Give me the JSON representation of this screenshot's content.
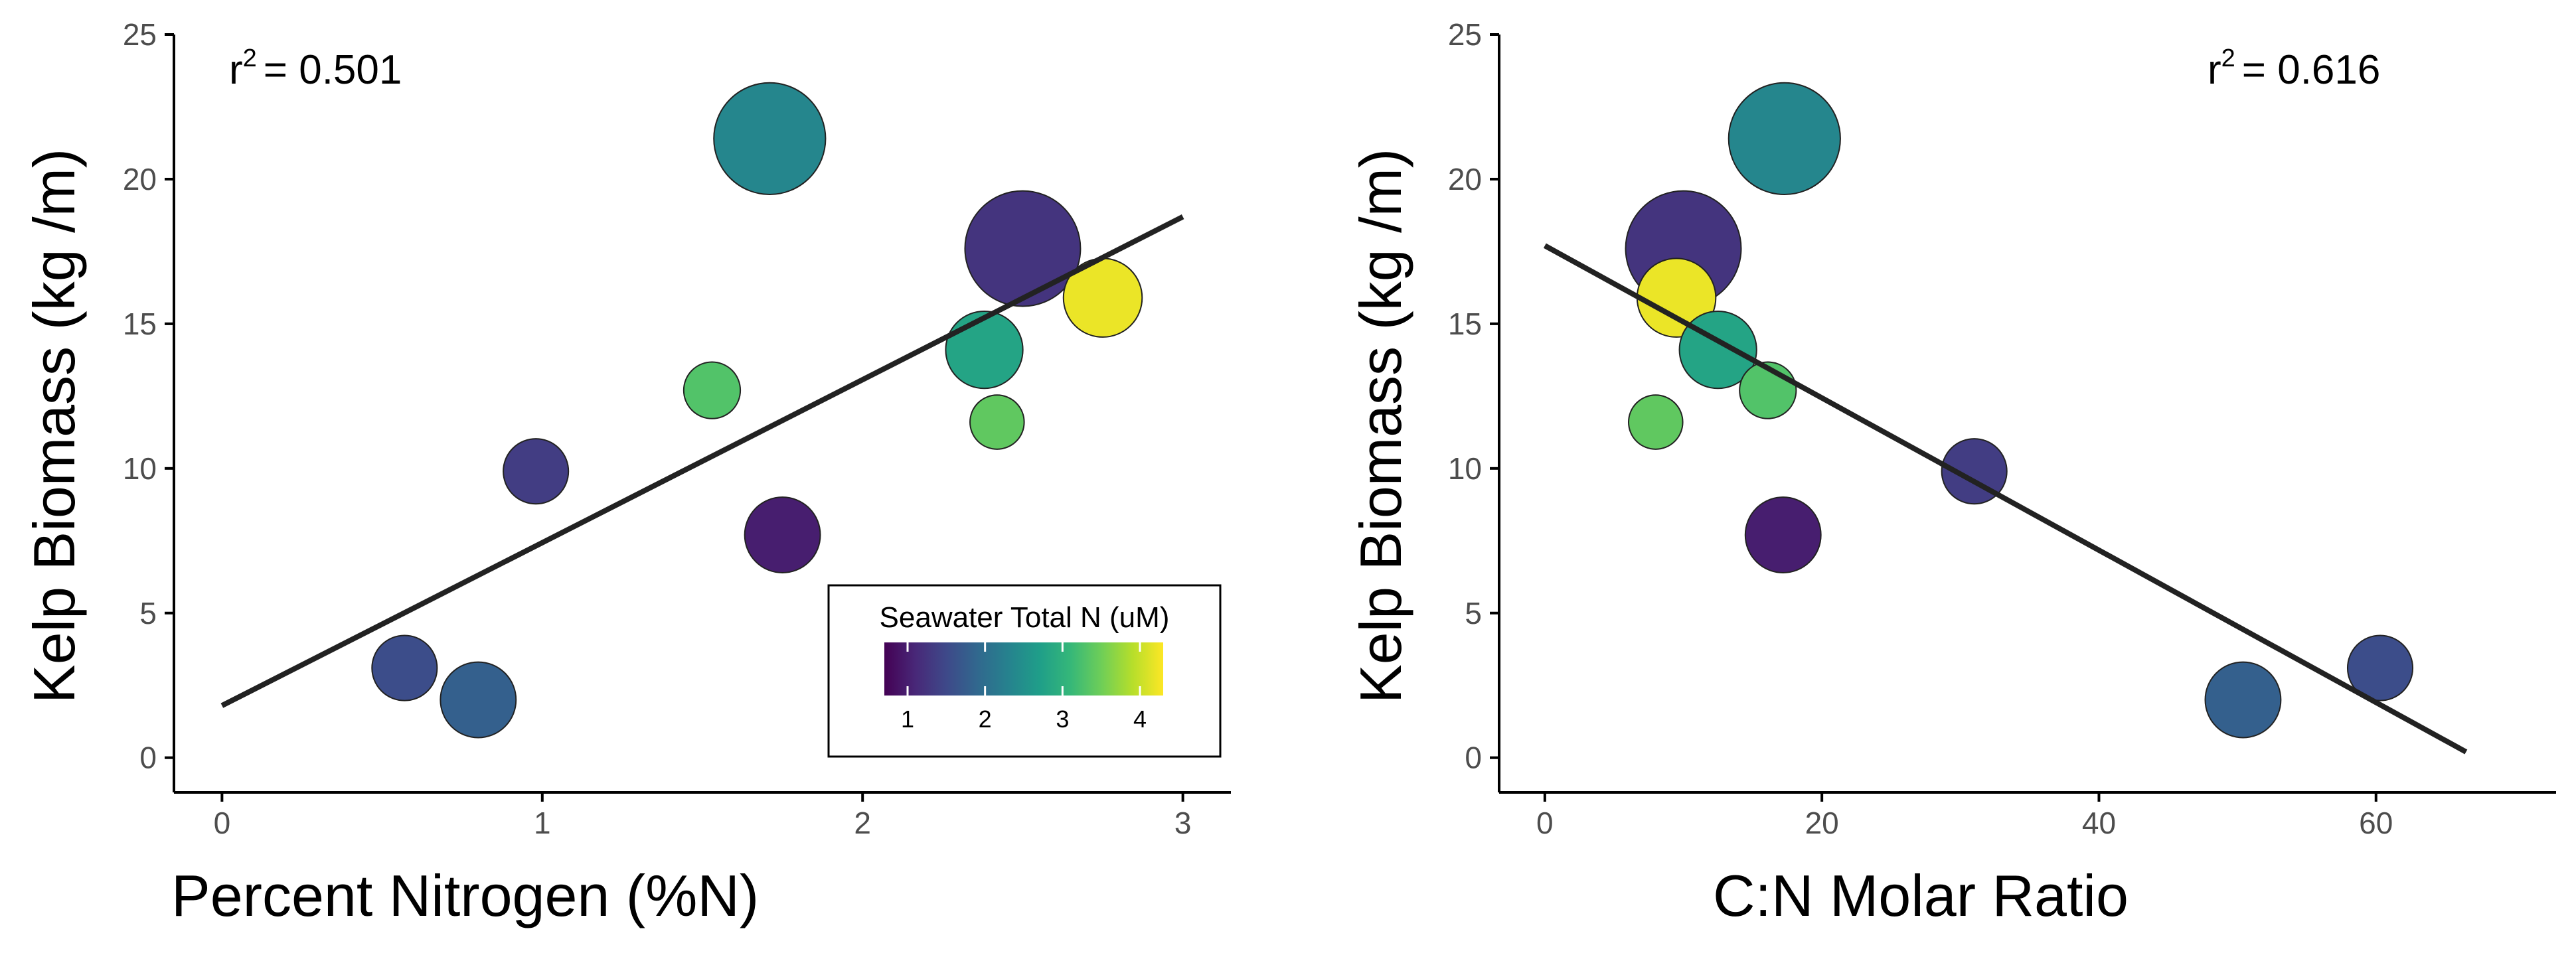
{
  "chart_data": [
    {
      "type": "scatter",
      "xlabel": "Percent Nitrogen (%N)",
      "ylabel": "Kelp Biomass (kg /m)",
      "r2_label": "r",
      "r2_sup": "2",
      "r2_value": "= 0.501",
      "xlim": [
        -0.15,
        3.15
      ],
      "ylim": [
        -1.2,
        25
      ],
      "xticks": [
        0,
        1,
        2,
        3
      ],
      "yticks": [
        0,
        5,
        10,
        15,
        20,
        25
      ],
      "trend_line": {
        "x": [
          0,
          3
        ],
        "y": [
          1.8,
          18.7
        ]
      },
      "points": [
        {
          "x": 0.57,
          "y": 3.1,
          "size": 1.2,
          "seawater_n": 1.55
        },
        {
          "x": 0.8,
          "y": 2.0,
          "size": 1.8,
          "seawater_n": 1.8
        },
        {
          "x": 0.98,
          "y": 9.9,
          "size": 1.2,
          "seawater_n": 1.35
        },
        {
          "x": 1.53,
          "y": 12.7,
          "size": 0.8,
          "seawater_n": 3.3
        },
        {
          "x": 1.71,
          "y": 21.4,
          "size": 4.8,
          "seawater_n": 2.35
        },
        {
          "x": 1.75,
          "y": 7.7,
          "size": 1.8,
          "seawater_n": 1.0
        },
        {
          "x": 2.38,
          "y": 14.1,
          "size": 1.9,
          "seawater_n": 2.8
        },
        {
          "x": 2.42,
          "y": 11.6,
          "size": 0.7,
          "seawater_n": 3.4
        },
        {
          "x": 2.5,
          "y": 17.6,
          "size": 5.2,
          "seawater_n": 1.25
        },
        {
          "x": 2.75,
          "y": 15.9,
          "size": 2.0,
          "seawater_n": 4.2
        }
      ]
    },
    {
      "type": "scatter",
      "xlabel": "C:N Molar Ratio",
      "ylabel": "Kelp Biomass (kg /m)",
      "r2_label": "r",
      "r2_sup": "2",
      "r2_value": "= 0.616",
      "xlim": [
        -3.3,
        73
      ],
      "ylim": [
        -1.2,
        25
      ],
      "xticks": [
        0,
        20,
        40,
        60
      ],
      "yticks": [
        0,
        5,
        10,
        15,
        20,
        25
      ],
      "trend_line": {
        "x": [
          0,
          66.5
        ],
        "y": [
          17.7,
          0.2
        ]
      },
      "points": [
        {
          "x": 60.3,
          "y": 3.1,
          "size": 1.2,
          "seawater_n": 1.55
        },
        {
          "x": 50.4,
          "y": 2.0,
          "size": 1.8,
          "seawater_n": 1.8
        },
        {
          "x": 31.0,
          "y": 9.9,
          "size": 1.2,
          "seawater_n": 1.35
        },
        {
          "x": 16.1,
          "y": 12.7,
          "size": 0.8,
          "seawater_n": 3.3
        },
        {
          "x": 17.3,
          "y": 21.4,
          "size": 4.8,
          "seawater_n": 2.35
        },
        {
          "x": 17.2,
          "y": 7.7,
          "size": 1.8,
          "seawater_n": 1.0
        },
        {
          "x": 12.5,
          "y": 14.1,
          "size": 1.9,
          "seawater_n": 2.8
        },
        {
          "x": 8.0,
          "y": 11.6,
          "size": 0.7,
          "seawater_n": 3.4
        },
        {
          "x": 10.0,
          "y": 17.6,
          "size": 5.2,
          "seawater_n": 1.25
        },
        {
          "x": 9.5,
          "y": 15.9,
          "size": 2.0,
          "seawater_n": 4.2
        }
      ]
    }
  ],
  "legend": {
    "title": "Seawater Total N (uM)",
    "range": [
      0.7,
      4.3
    ],
    "ticks": [
      1,
      2,
      3,
      4
    ],
    "colors": [
      "#440154",
      "#482878",
      "#3e4989",
      "#31688e",
      "#26828e",
      "#1f9e89",
      "#35b779",
      "#6ece58",
      "#b5de2b",
      "#fde725"
    ]
  }
}
